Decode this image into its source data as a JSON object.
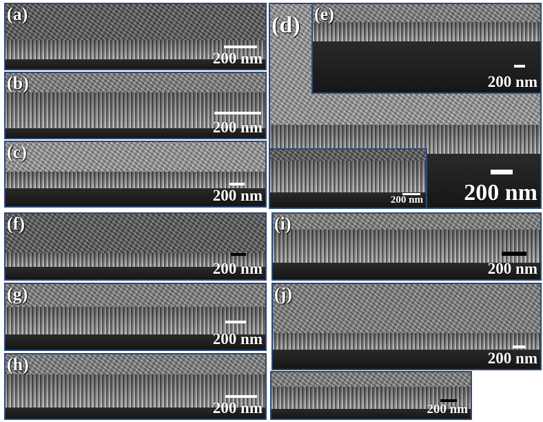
{
  "panels": [
    {
      "label": "(a)",
      "scale": "200 nm"
    },
    {
      "label": "(b)",
      "scale": "200 nm"
    },
    {
      "label": "(c)",
      "scale": "200 nm"
    },
    {
      "label": "(d)",
      "scale": "200 nm"
    },
    {
      "label": "(e)",
      "scale": "200 nm"
    },
    {
      "scale": "200 nm"
    },
    {
      "label": "(f)",
      "scale": "200 nm"
    },
    {
      "label": "(g)",
      "scale": "200 nm"
    },
    {
      "label": "(h)",
      "scale": "200 nm"
    },
    {
      "label": "(i)",
      "scale": "200 nm"
    },
    {
      "label": "(j)",
      "scale": "200 nm"
    },
    {
      "scale": "200 nm"
    }
  ]
}
